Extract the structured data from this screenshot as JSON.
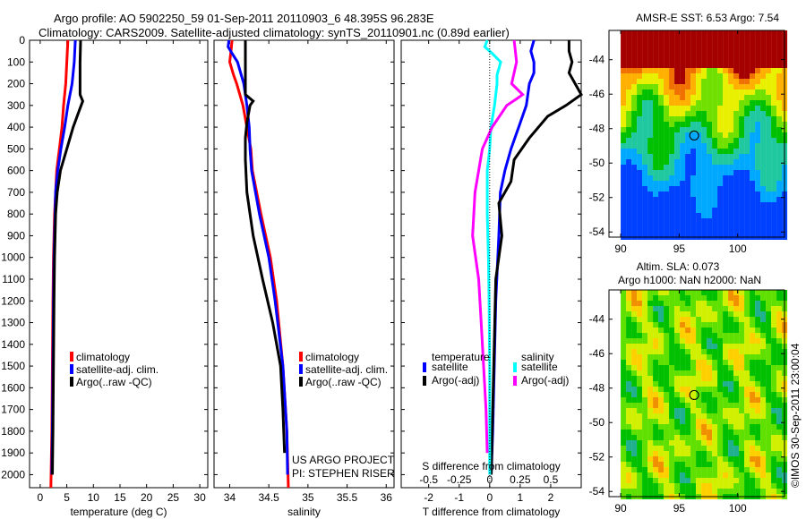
{
  "header": {
    "line1": "Argo profile: AO 5902250_59 01-Sep-2011 20110903_6 48.395S 96.283E",
    "line2": "Climatology: CARS2009. Satellite-adjusted climatology: synTS_20110901.nc (0.89d earlier)"
  },
  "footer": {
    "copyright": "©IMOS 30-Sep-2011 23:00:04"
  },
  "colors": {
    "climatology": "#ff0000",
    "satellite": "#0000ff",
    "argo": "#000000",
    "sal_satellite": "#00ffff",
    "sal_argo": "#ff00ff",
    "warm": "#a50000"
  },
  "chart_data": [
    {
      "type": "line",
      "id": "temperature",
      "xlabel": "temperature (deg C)",
      "ylabel": "",
      "xlim": [
        -2,
        31.5
      ],
      "ylim": [
        2060,
        0
      ],
      "xticks": [
        0,
        5,
        10,
        15,
        20,
        25,
        30
      ],
      "yticks": [
        0,
        100,
        200,
        300,
        400,
        500,
        600,
        700,
        800,
        900,
        1000,
        1100,
        1200,
        1300,
        1400,
        1500,
        1600,
        1700,
        1800,
        1900,
        2000
      ],
      "legend": [
        "climatology",
        "satellite-adj. clim.",
        "Argo(..raw -QC)"
      ],
      "series": [
        {
          "name": "climatology",
          "color": "#ff0000",
          "depth": [
            0,
            100,
            200,
            300,
            400,
            500,
            600,
            700,
            800,
            1000,
            1200,
            1500,
            1800,
            2060
          ],
          "values": [
            5.2,
            5.0,
            4.8,
            4.4,
            4.1,
            3.6,
            3.1,
            2.9,
            2.7,
            2.5,
            2.4,
            2.3,
            2.2,
            2.0
          ]
        },
        {
          "name": "satellite-adj. clim.",
          "color": "#0000ff",
          "depth": [
            0,
            100,
            200,
            300,
            400,
            500,
            600,
            700,
            800,
            1000,
            1200,
            1500,
            1800,
            2000
          ],
          "values": [
            6.6,
            6.4,
            6.0,
            5.2,
            4.6,
            3.9,
            3.3,
            2.9,
            2.8,
            2.6,
            2.5,
            2.4,
            2.3,
            2.2
          ]
        },
        {
          "name": "Argo(..raw -QC)",
          "color": "#000000",
          "depth": [
            0,
            100,
            200,
            250,
            280,
            320,
            400,
            500,
            600,
            700,
            800,
            1000,
            1200,
            1500,
            1800,
            2000
          ],
          "values": [
            7.6,
            7.5,
            7.5,
            7.5,
            8.0,
            7.4,
            6.2,
            5.0,
            3.8,
            3.2,
            2.9,
            2.7,
            2.6,
            2.5,
            2.4,
            2.3
          ]
        }
      ]
    },
    {
      "type": "line",
      "id": "salinity",
      "xlabel": "salinity",
      "ylabel": "",
      "xlim": [
        33.8,
        36.1
      ],
      "ylim": [
        2060,
        0
      ],
      "xticks": [
        34,
        34.5,
        35,
        35.5,
        36
      ],
      "legend": [
        "climatology",
        "satellite-adj. clim.",
        "Argo(..raw -QC)"
      ],
      "annotation": [
        "US ARGO PROJECT",
        "PI: STEPHEN RISER"
      ],
      "series": [
        {
          "name": "climatology",
          "color": "#ff0000",
          "depth": [
            0,
            40,
            100,
            160,
            200,
            300,
            400,
            500,
            600,
            800,
            1000,
            1200,
            1500,
            1800,
            2060
          ],
          "values": [
            34.03,
            34.02,
            34.0,
            34.05,
            34.09,
            34.17,
            34.22,
            34.27,
            34.29,
            34.4,
            34.52,
            34.6,
            34.68,
            34.73,
            34.75
          ]
        },
        {
          "name": "satellite-adj. clim.",
          "color": "#0000ff",
          "depth": [
            0,
            30,
            60,
            100,
            200,
            300,
            400,
            500,
            600,
            800,
            1000,
            1200,
            1500,
            1800,
            2000
          ],
          "values": [
            33.99,
            33.98,
            34.03,
            34.1,
            34.18,
            34.22,
            34.25,
            34.26,
            34.28,
            34.38,
            34.5,
            34.58,
            34.68,
            34.73,
            34.74
          ]
        },
        {
          "name": "Argo(..raw -QC)",
          "color": "#000000",
          "depth": [
            0,
            100,
            250,
            280,
            300,
            380,
            450,
            550,
            700,
            900,
            1100,
            1300,
            1500,
            1700,
            1900
          ],
          "values": [
            34.2,
            34.2,
            34.2,
            34.3,
            34.26,
            34.22,
            34.2,
            34.2,
            34.22,
            34.3,
            34.42,
            34.55,
            34.65,
            34.68,
            34.7
          ]
        }
      ]
    },
    {
      "type": "line",
      "id": "difference",
      "xlabel": "T difference from climatology",
      "xlabel2": "S difference from climatology",
      "xlim": [
        -2.9,
        3.0
      ],
      "x2lim": [
        -0.725,
        0.75
      ],
      "ylim": [
        2060,
        0
      ],
      "xticks": [
        -2,
        -1,
        0,
        1,
        2
      ],
      "x2ticks": [
        -0.5,
        -0.25,
        0,
        0.25,
        0.5
      ],
      "legend_temperature": {
        "title": "temperature",
        "items": [
          "satellite",
          "Argo(-adj)"
        ]
      },
      "legend_salinity": {
        "title": "salinity",
        "items": [
          "satellite",
          "Argo(-adj)"
        ]
      },
      "series": [
        {
          "name": "T satellite",
          "color": "#0000ff",
          "axis": "T",
          "depth": [
            0,
            50,
            100,
            150,
            200,
            300,
            400,
            500,
            600,
            700,
            900,
            1200,
            1500,
            1800,
            2000
          ],
          "values": [
            1.45,
            1.35,
            1.45,
            1.45,
            1.3,
            1.2,
            0.95,
            0.7,
            0.5,
            0.35,
            0.3,
            0.2,
            0.15,
            0.1,
            0.05
          ]
        },
        {
          "name": "T Argo(-adj)",
          "color": "#000000",
          "axis": "T",
          "depth": [
            0,
            50,
            100,
            150,
            200,
            250,
            300,
            350,
            450,
            550,
            650,
            750,
            900,
            1100,
            1400,
            1700,
            2000
          ],
          "values": [
            2.6,
            2.6,
            2.7,
            2.6,
            2.8,
            3.0,
            2.5,
            1.9,
            1.3,
            0.8,
            0.7,
            0.3,
            0.4,
            0.2,
            0.15,
            0.1,
            0.05
          ]
        },
        {
          "name": "S satellite",
          "color": "#00ffff",
          "axis": "S",
          "depth": [
            0,
            30,
            60,
            100,
            160,
            200,
            300,
            400,
            500,
            600,
            800,
            1000,
            1200,
            1500,
            1800,
            2000
          ],
          "values": [
            -0.02,
            -0.04,
            0.02,
            0.09,
            0.06,
            0.06,
            0.04,
            0.01,
            0.0,
            -0.02,
            -0.02,
            -0.01,
            -0.005,
            0.0,
            0.0,
            0.0
          ],
          "values_T_equiv_note": "plotted on S axis"
        },
        {
          "name": "S Argo(-adj)",
          "color": "#ff00ff",
          "axis": "S",
          "depth": [
            0,
            100,
            200,
            250,
            270,
            300,
            400,
            500,
            600,
            700,
            900,
            1100,
            1300,
            1500,
            1700,
            1900
          ],
          "values": [
            0.2,
            0.22,
            0.18,
            0.27,
            0.22,
            0.14,
            0.02,
            -0.06,
            -0.09,
            -0.12,
            -0.14,
            -0.09,
            -0.07,
            -0.05,
            -0.03,
            -0.02
          ]
        }
      ]
    },
    {
      "type": "heatmap",
      "id": "sst-map",
      "title": "AMSR-E SST: 6.53 Argo: 7.54",
      "xlim": [
        89,
        104
      ],
      "ylim": [
        -54.3,
        -42.3
      ],
      "xticks": [
        90,
        95,
        100
      ],
      "yticks": [
        -44,
        -46,
        -48,
        -50,
        -52,
        -54
      ],
      "marker": {
        "lon": 96.28,
        "lat": -48.4
      }
    },
    {
      "type": "heatmap",
      "id": "sla-map",
      "title": "Altim. SLA: 0.073",
      "subtitle": "Argo h1000: NaN h2000: NaN",
      "xlim": [
        89,
        104
      ],
      "ylim": [
        -54.3,
        -42.3
      ],
      "xticks": [
        90,
        95,
        100
      ],
      "yticks": [
        -44,
        -46,
        -48,
        -50,
        -52,
        -54
      ],
      "marker": {
        "lon": 96.28,
        "lat": -48.4
      }
    }
  ]
}
